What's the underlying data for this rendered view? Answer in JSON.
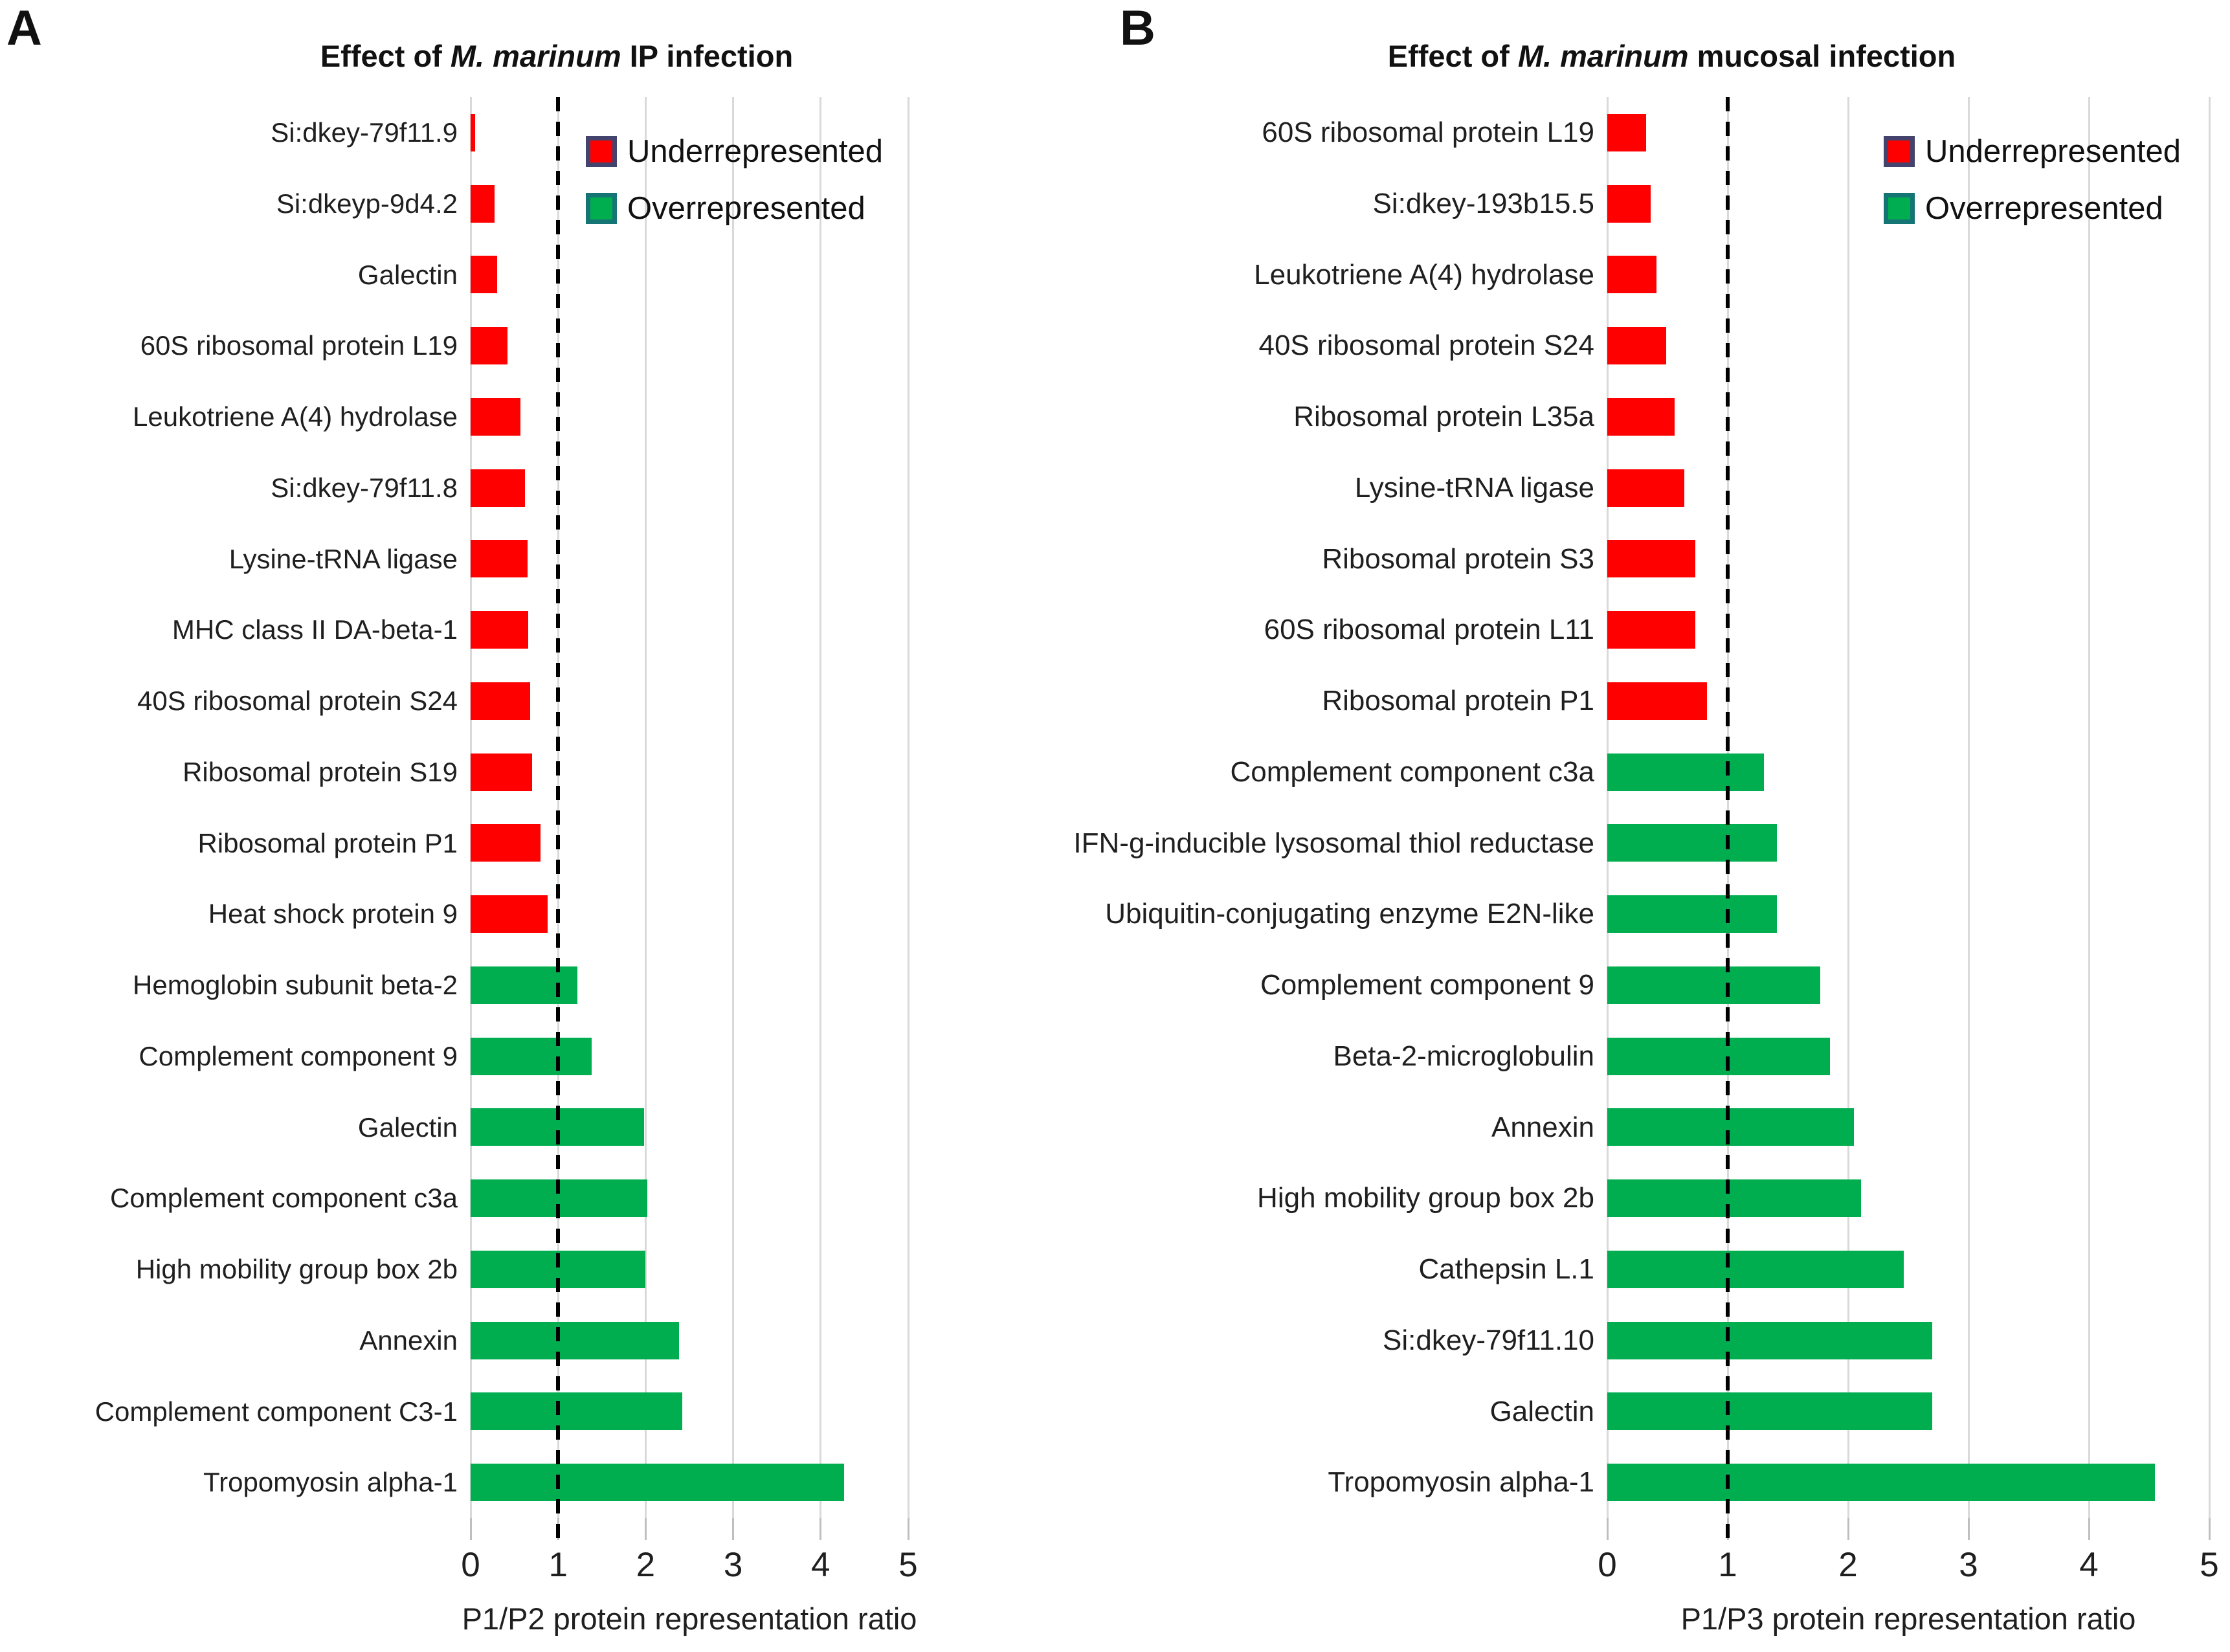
{
  "figure": {
    "panel_a_letter": "A",
    "panel_b_letter": "B"
  },
  "legend": {
    "underrepresented": "Underrepresented",
    "overrepresented": "Overrepresented"
  },
  "colors": {
    "underrepresented": "#FE0000",
    "overrepresented": "#00AE4F",
    "underrepresented_swatch_border": "#44436E",
    "overrepresented_swatch_border": "#157575",
    "gridline": "#D9D9D9",
    "axis_tick": "#BFBFBF",
    "reference_line": "#000000",
    "text": "#1F1F1F"
  },
  "chart_data": [
    {
      "type": "bar",
      "orientation": "horizontal",
      "panel": "A",
      "title": {
        "prefix": "Effect of ",
        "italic": "M. marinum",
        "suffix": " IP infection"
      },
      "xlabel": "P1/P2 protein representation ratio",
      "xlim": [
        0,
        5
      ],
      "x_ticks": [
        "0",
        "1",
        "2",
        "3",
        "4",
        "5"
      ],
      "reference_line_x": 1,
      "grid": true,
      "legend_position": "inside-top",
      "rows": [
        {
          "label": "Si:dkey-79f11.9",
          "value": 0.05,
          "status": "underrepresented"
        },
        {
          "label": "Si:dkeyp-9d4.2",
          "value": 0.27,
          "status": "underrepresented"
        },
        {
          "label": "Galectin",
          "value": 0.3,
          "status": "underrepresented"
        },
        {
          "label": "60S ribosomal protein L19",
          "value": 0.42,
          "status": "underrepresented"
        },
        {
          "label": "Leukotriene A(4) hydrolase",
          "value": 0.57,
          "status": "underrepresented"
        },
        {
          "label": "Si:dkey-79f11.8",
          "value": 0.62,
          "status": "underrepresented"
        },
        {
          "label": "Lysine-tRNA ligase",
          "value": 0.65,
          "status": "underrepresented"
        },
        {
          "label": "MHC class II DA-beta-1",
          "value": 0.66,
          "status": "underrepresented"
        },
        {
          "label": "40S ribosomal protein S24",
          "value": 0.68,
          "status": "underrepresented"
        },
        {
          "label": "Ribosomal protein S19",
          "value": 0.7,
          "status": "underrepresented"
        },
        {
          "label": "Ribosomal protein P1",
          "value": 0.8,
          "status": "underrepresented"
        },
        {
          "label": "Heat shock protein 9",
          "value": 0.88,
          "status": "underrepresented"
        },
        {
          "label": "Hemoglobin subunit beta-2",
          "value": 1.22,
          "status": "overrepresented"
        },
        {
          "label": "Complement component 9",
          "value": 1.38,
          "status": "overrepresented"
        },
        {
          "label": "Galectin",
          "value": 1.98,
          "status": "overrepresented"
        },
        {
          "label": "Complement component c3a",
          "value": 2.02,
          "status": "overrepresented"
        },
        {
          "label": "High mobility group box 2b",
          "value": 2.0,
          "status": "overrepresented"
        },
        {
          "label": "Annexin",
          "value": 2.38,
          "status": "overrepresented"
        },
        {
          "label": "Complement component C3-1",
          "value": 2.42,
          "status": "overrepresented"
        },
        {
          "label": "Tropomyosin alpha-1",
          "value": 4.27,
          "status": "overrepresented"
        }
      ]
    },
    {
      "type": "bar",
      "orientation": "horizontal",
      "panel": "B",
      "title": {
        "prefix": "Effect of ",
        "italic": "M. marinum",
        "suffix": " mucosal infection"
      },
      "xlabel": "P1/P3 protein representation ratio",
      "xlim": [
        0,
        5
      ],
      "x_ticks": [
        "0",
        "1",
        "2",
        "3",
        "4",
        "5"
      ],
      "reference_line_x": 1,
      "grid": true,
      "legend_position": "inside-top",
      "rows": [
        {
          "label": "60S ribosomal protein L19",
          "value": 0.32,
          "status": "underrepresented"
        },
        {
          "label": "Si:dkey-193b15.5",
          "value": 0.36,
          "status": "underrepresented"
        },
        {
          "label": "Leukotriene A(4) hydrolase",
          "value": 0.41,
          "status": "underrepresented"
        },
        {
          "label": "40S ribosomal protein S24",
          "value": 0.49,
          "status": "underrepresented"
        },
        {
          "label": "Ribosomal protein L35a",
          "value": 0.56,
          "status": "underrepresented"
        },
        {
          "label": "Lysine-tRNA ligase",
          "value": 0.64,
          "status": "underrepresented"
        },
        {
          "label": "Ribosomal protein S3",
          "value": 0.73,
          "status": "underrepresented"
        },
        {
          "label": "60S ribosomal protein L11",
          "value": 0.73,
          "status": "underrepresented"
        },
        {
          "label": "Ribosomal protein P1",
          "value": 0.83,
          "status": "underrepresented"
        },
        {
          "label": "Complement component c3a",
          "value": 1.3,
          "status": "overrepresented"
        },
        {
          "label": "IFN-g-inducible lysosomal thiol reductase",
          "value": 1.41,
          "status": "overrepresented"
        },
        {
          "label": "Ubiquitin-conjugating enzyme E2N-like",
          "value": 1.41,
          "status": "overrepresented"
        },
        {
          "label": "Complement component 9",
          "value": 1.77,
          "status": "overrepresented"
        },
        {
          "label": "Beta-2-microglobulin",
          "value": 1.85,
          "status": "overrepresented"
        },
        {
          "label": "Annexin",
          "value": 2.05,
          "status": "overrepresented"
        },
        {
          "label": "High mobility group box 2b",
          "value": 2.11,
          "status": "overrepresented"
        },
        {
          "label": "Cathepsin L.1",
          "value": 2.46,
          "status": "overrepresented"
        },
        {
          "label": "Si:dkey-79f11.10",
          "value": 2.7,
          "status": "overrepresented"
        },
        {
          "label": "Galectin",
          "value": 2.7,
          "status": "overrepresented"
        },
        {
          "label": "Tropomyosin alpha-1",
          "value": 4.55,
          "status": "overrepresented"
        }
      ]
    }
  ]
}
